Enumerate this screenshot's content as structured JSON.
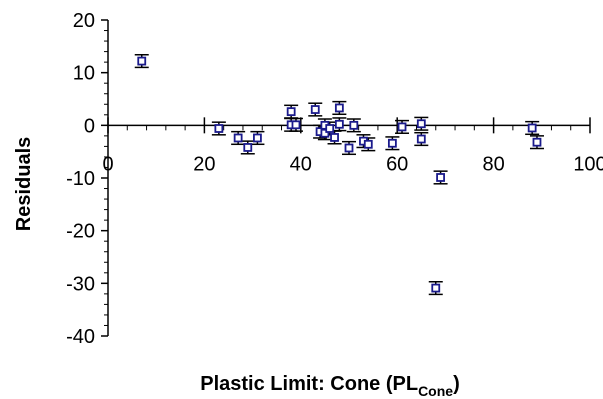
{
  "chart_data": {
    "type": "scatter",
    "title": "",
    "xlabel_main": "Plastic Limit: Cone (PL",
    "xlabel_sub": "Cone",
    "xlabel_close": ")",
    "ylabel": "Residuals",
    "xlim": [
      0,
      100
    ],
    "ylim": [
      -40,
      20
    ],
    "xticks": [
      0,
      20,
      40,
      60,
      80,
      100
    ],
    "yticks": [
      20,
      10,
      0,
      -10,
      -20,
      -30,
      -40
    ],
    "grid": false,
    "legend": "none",
    "marker": "open-square",
    "error_bars": true,
    "colors": {
      "marker": "#1a1a8c",
      "axis": "#000000",
      "error_bar": "#000000"
    },
    "points": [
      {
        "x": 7,
        "y": 12.2,
        "err": 1.2
      },
      {
        "x": 23,
        "y": -0.6,
        "err": 1.2
      },
      {
        "x": 27,
        "y": -2.4,
        "err": 1.2
      },
      {
        "x": 29,
        "y": -4.2,
        "err": 1.2
      },
      {
        "x": 31,
        "y": -2.4,
        "err": 1.2
      },
      {
        "x": 38,
        "y": 2.6,
        "err": 1.2
      },
      {
        "x": 38,
        "y": 0.1,
        "err": 1.2
      },
      {
        "x": 39,
        "y": 0.1,
        "err": 1.2
      },
      {
        "x": 43,
        "y": 3.0,
        "err": 1.2
      },
      {
        "x": 44,
        "y": -1.2,
        "err": 1.2
      },
      {
        "x": 45,
        "y": 0.0,
        "err": 1.2
      },
      {
        "x": 45,
        "y": -1.5,
        "err": 1.2
      },
      {
        "x": 46,
        "y": -0.6,
        "err": 1.2
      },
      {
        "x": 47,
        "y": -2.3,
        "err": 1.2
      },
      {
        "x": 48,
        "y": 3.3,
        "err": 1.2
      },
      {
        "x": 48,
        "y": 0.2,
        "err": 1.2
      },
      {
        "x": 50,
        "y": -4.3,
        "err": 1.2
      },
      {
        "x": 51,
        "y": 0.0,
        "err": 1.2
      },
      {
        "x": 53,
        "y": -3.0,
        "err": 1.2
      },
      {
        "x": 54,
        "y": -3.6,
        "err": 1.2
      },
      {
        "x": 59,
        "y": -3.4,
        "err": 1.2
      },
      {
        "x": 61,
        "y": -0.3,
        "err": 1.2
      },
      {
        "x": 65,
        "y": 0.3,
        "err": 1.2
      },
      {
        "x": 65,
        "y": -2.6,
        "err": 1.2
      },
      {
        "x": 68,
        "y": -30.9,
        "err": 1.2
      },
      {
        "x": 69,
        "y": -9.9,
        "err": 1.2
      },
      {
        "x": 88,
        "y": -0.5,
        "err": 1.2
      },
      {
        "x": 89,
        "y": -3.2,
        "err": 1.2
      }
    ]
  }
}
